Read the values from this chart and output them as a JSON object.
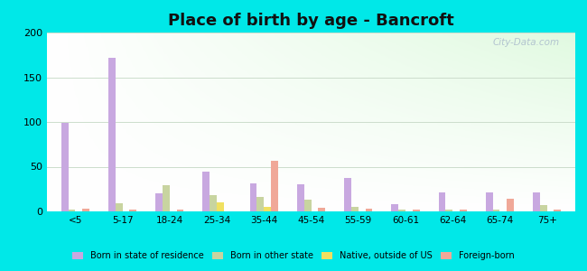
{
  "title": "Place of birth by age - Bancroft",
  "categories": [
    "<5",
    "5-17",
    "18-24",
    "25-34",
    "35-44",
    "45-54",
    "55-59",
    "60-61",
    "62-64",
    "65-74",
    "75+"
  ],
  "series": {
    "Born in state of residence": [
      99,
      172,
      20,
      44,
      31,
      30,
      37,
      8,
      21,
      21,
      21
    ],
    "Born in other state": [
      2,
      9,
      29,
      18,
      16,
      13,
      5,
      2,
      2,
      2,
      7
    ],
    "Native, outside of US": [
      0,
      0,
      0,
      10,
      5,
      0,
      0,
      0,
      0,
      0,
      0
    ],
    "Foreign-born": [
      3,
      2,
      2,
      0,
      57,
      4,
      3,
      2,
      2,
      14,
      2
    ]
  },
  "colors": {
    "Born in state of residence": "#c8a8e0",
    "Born in other state": "#c8d4a0",
    "Native, outside of US": "#f0e060",
    "Foreign-born": "#f0a898"
  },
  "ylim": [
    0,
    200
  ],
  "yticks": [
    0,
    50,
    100,
    150,
    200
  ],
  "background_color": "#00e8e8",
  "watermark": "City-Data.com",
  "title_fontsize": 13,
  "bar_width": 0.15
}
